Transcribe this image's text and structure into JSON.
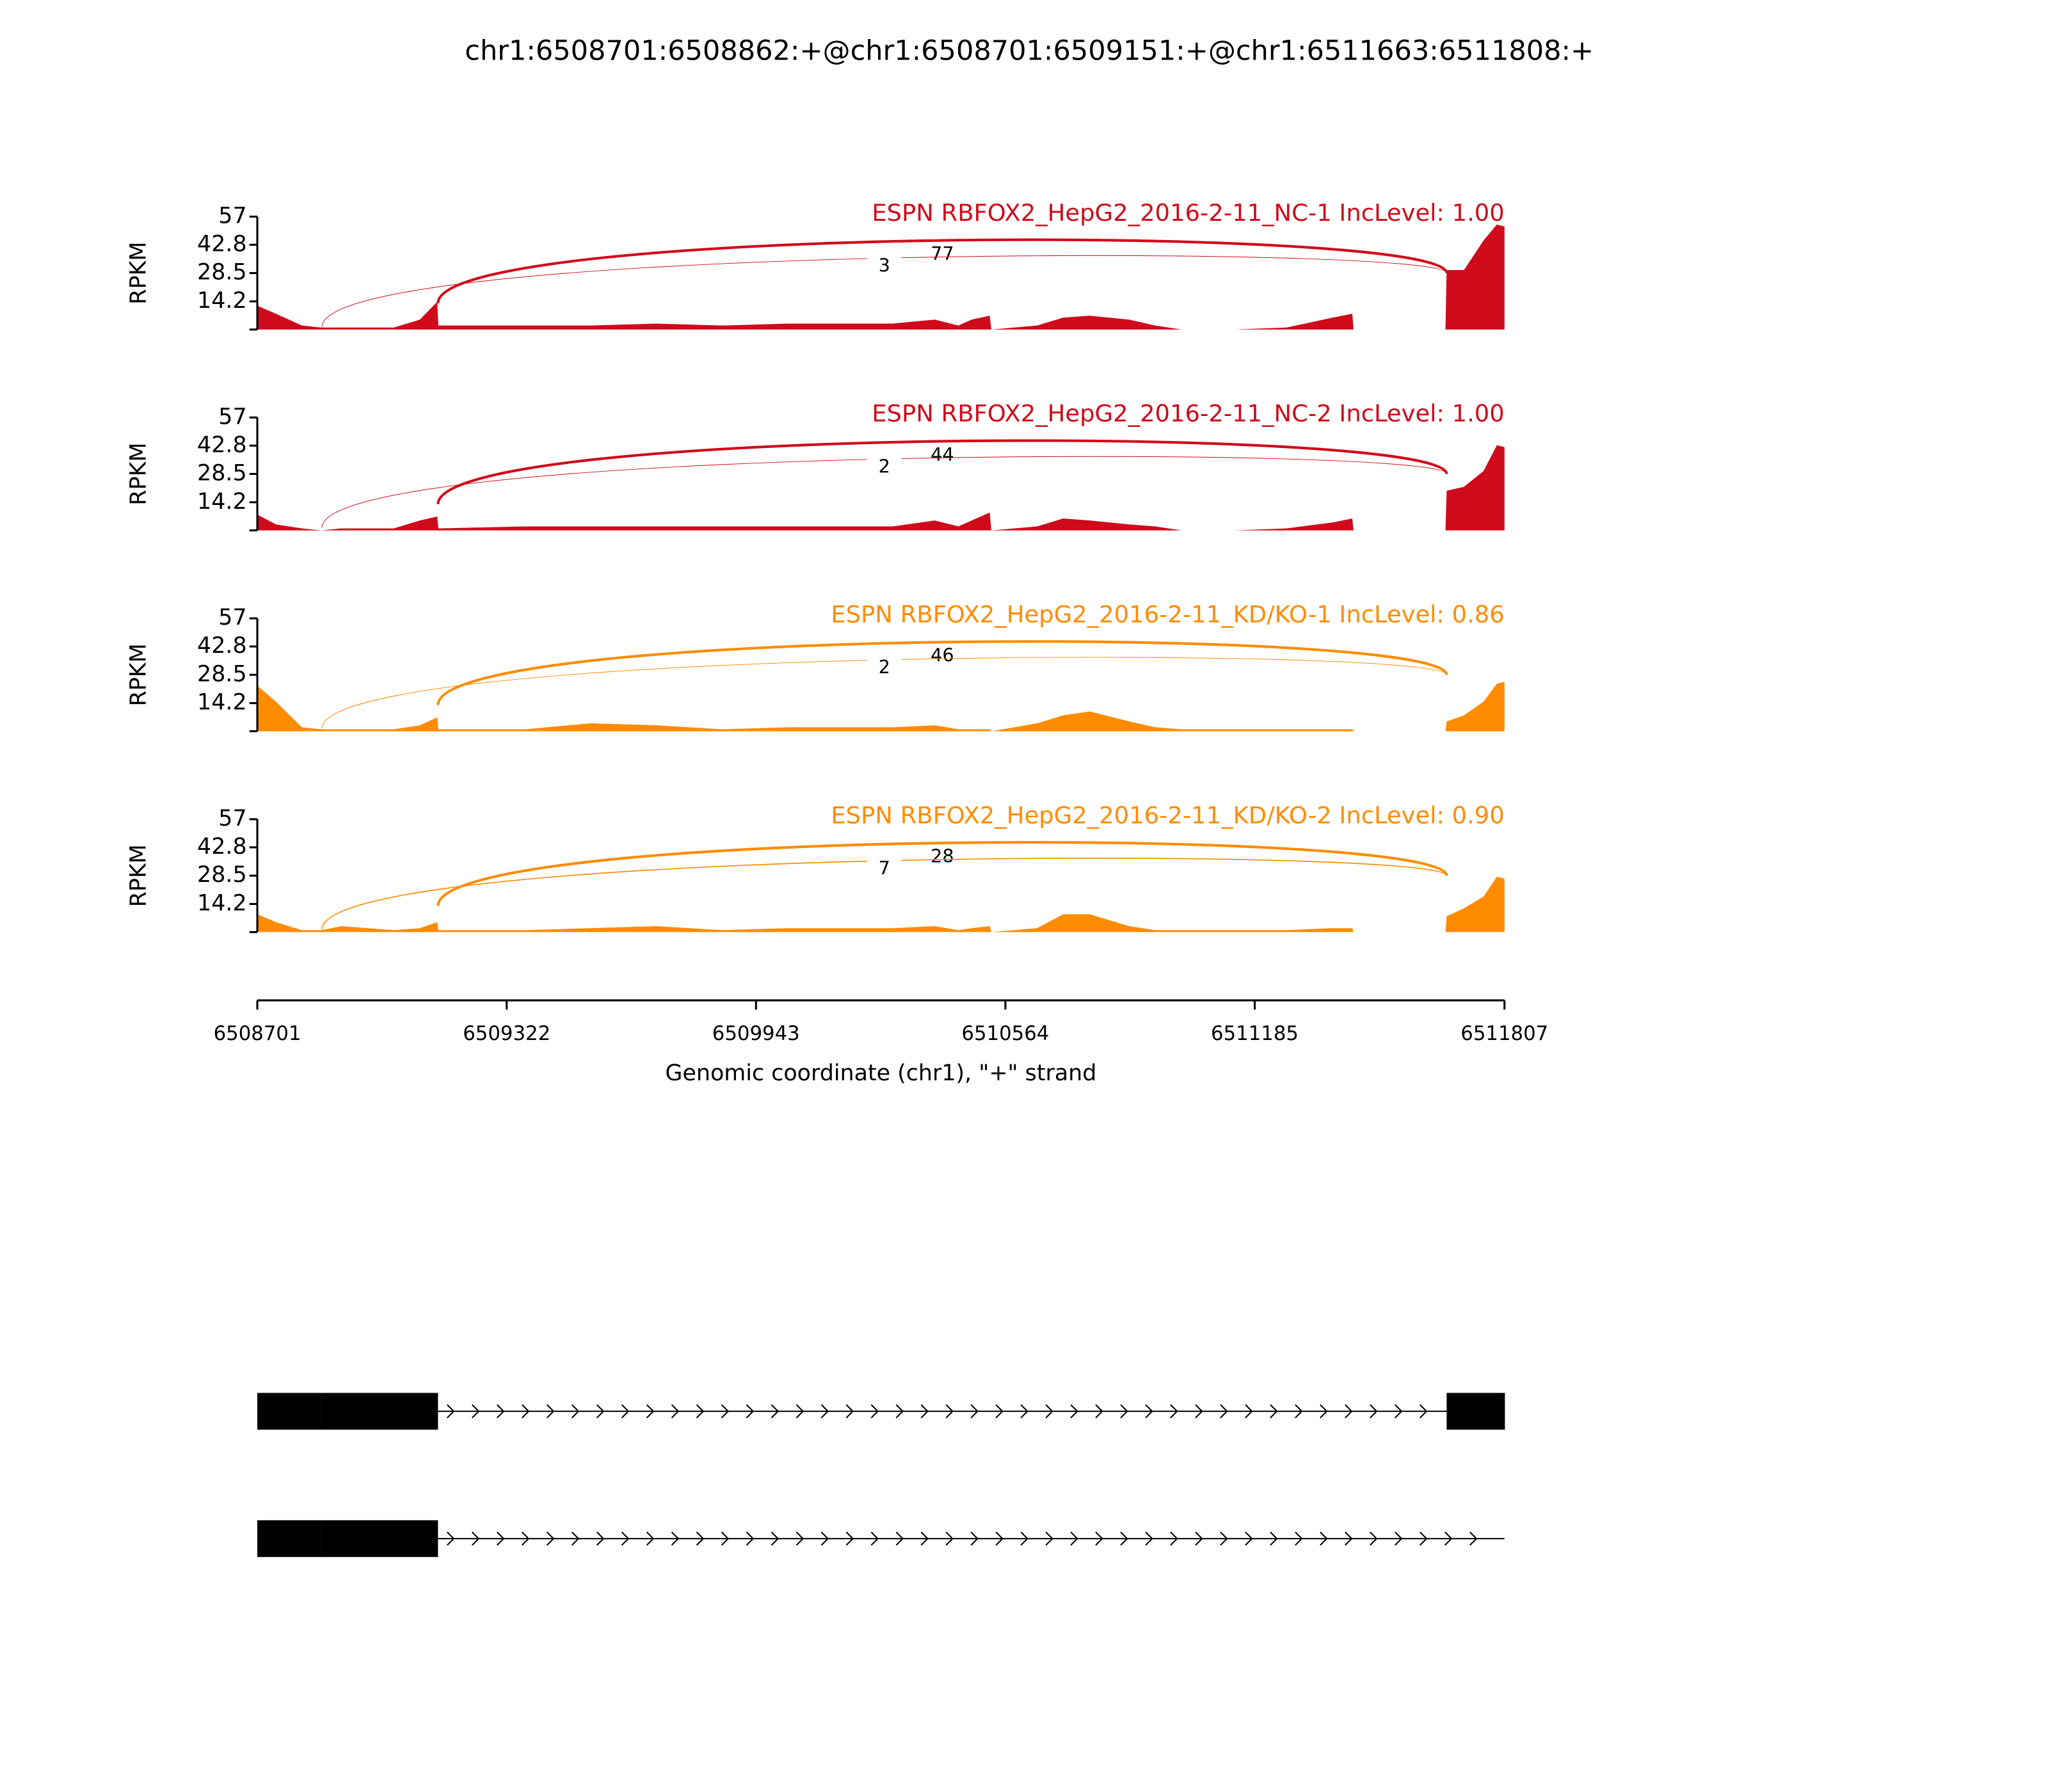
{
  "chart_data": {
    "type": "sashimi",
    "title": "chr1:6508701:6508862:+@chr1:6508701:6509151:+@chr1:6511663:6511808:+",
    "xlabel": "Genomic coordinate (chr1), \"+\" strand",
    "xlim": [
      6508701,
      6511807
    ],
    "xticks": [
      6508701,
      6509322,
      6509943,
      6510564,
      6511185,
      6511807
    ],
    "ylabel": "RPKM",
    "ylim": [
      0,
      57
    ],
    "yticks": [
      14.2,
      28.5,
      42.8,
      57
    ],
    "x": [
      6508701,
      6508747,
      6508812,
      6508861,
      6508910,
      6509041,
      6509106,
      6509149,
      6509152,
      6509368,
      6509531,
      6509695,
      6509858,
      6510022,
      6510283,
      6510388,
      6510447,
      6510480,
      6510525,
      6510529,
      6510643,
      6510708,
      6510774,
      6510872,
      6510937,
      6511003,
      6511134,
      6511264,
      6511379,
      6511428,
      6511431,
      6511660,
      6511663,
      6511706,
      6511755,
      6511788,
      6511807
    ],
    "panels": [
      {
        "name": "ESPN RBFOX2_HepG2_2016-2-11_NC-1 IncLevel: 1.00",
        "color": "#cf0a1a",
        "values": [
          12,
          8,
          2,
          1,
          1,
          1,
          5,
          14,
          2,
          2,
          2,
          3,
          2,
          3,
          3,
          5,
          2,
          5,
          7,
          0,
          2,
          6,
          7,
          5,
          2,
          0,
          0,
          1,
          6,
          8,
          0,
          0,
          30,
          30,
          45,
          53,
          52
        ],
        "junctions": [
          {
            "start": 6509151,
            "end": 6511663,
            "count": 77
          },
          {
            "start": 6508862,
            "end": 6511663,
            "count": 3
          }
        ]
      },
      {
        "name": "ESPN RBFOX2_HepG2_2016-2-11_NC-2 IncLevel: 1.00",
        "color": "#cf0a1a",
        "values": [
          8,
          3,
          1,
          0,
          1,
          1,
          5,
          7,
          1,
          2,
          2,
          2,
          2,
          2,
          2,
          5,
          2,
          5,
          9,
          0,
          2,
          6,
          5,
          3,
          2,
          0,
          0,
          1,
          4,
          6,
          0,
          0,
          20,
          22,
          30,
          43,
          42
        ],
        "junctions": [
          {
            "start": 6509151,
            "end": 6511663,
            "count": 44
          },
          {
            "start": 6508862,
            "end": 6511663,
            "count": 2
          }
        ]
      },
      {
        "name": "ESPN RBFOX2_HepG2_2016-2-11_KD/KO-1 IncLevel: 0.86",
        "color": "#ff8c00",
        "values": [
          23,
          15,
          2,
          1,
          1,
          1,
          3,
          7,
          1,
          1,
          4,
          3,
          1,
          2,
          2,
          3,
          1,
          1,
          1,
          0,
          4,
          8,
          10,
          5,
          2,
          1,
          1,
          1,
          1,
          1,
          0,
          0,
          5,
          8,
          15,
          24,
          25
        ],
        "junctions": [
          {
            "start": 6509151,
            "end": 6511663,
            "count": 46
          },
          {
            "start": 6508862,
            "end": 6511663,
            "count": 2
          }
        ]
      },
      {
        "name": "ESPN RBFOX2_HepG2_2016-2-11_KD/KO-2 IncLevel: 0.90",
        "color": "#ff8c00",
        "values": [
          9,
          5,
          1,
          1,
          3,
          1,
          2,
          5,
          1,
          1,
          2,
          3,
          1,
          2,
          2,
          3,
          1,
          2,
          3,
          0,
          2,
          9,
          9,
          3,
          1,
          1,
          1,
          1,
          2,
          2,
          0,
          0,
          8,
          12,
          18,
          28,
          27
        ],
        "junctions": [
          {
            "start": 6509151,
            "end": 6511663,
            "count": 28
          },
          {
            "start": 6508862,
            "end": 6511663,
            "count": 7
          }
        ]
      }
    ],
    "transcripts": [
      {
        "exons": [
          [
            6508701,
            6508862
          ],
          [
            6508862,
            6509151
          ],
          [
            6511663,
            6511808
          ]
        ]
      },
      {
        "exons": [
          [
            6508701,
            6508862
          ],
          [
            6508862,
            6509151
          ]
        ]
      }
    ]
  }
}
